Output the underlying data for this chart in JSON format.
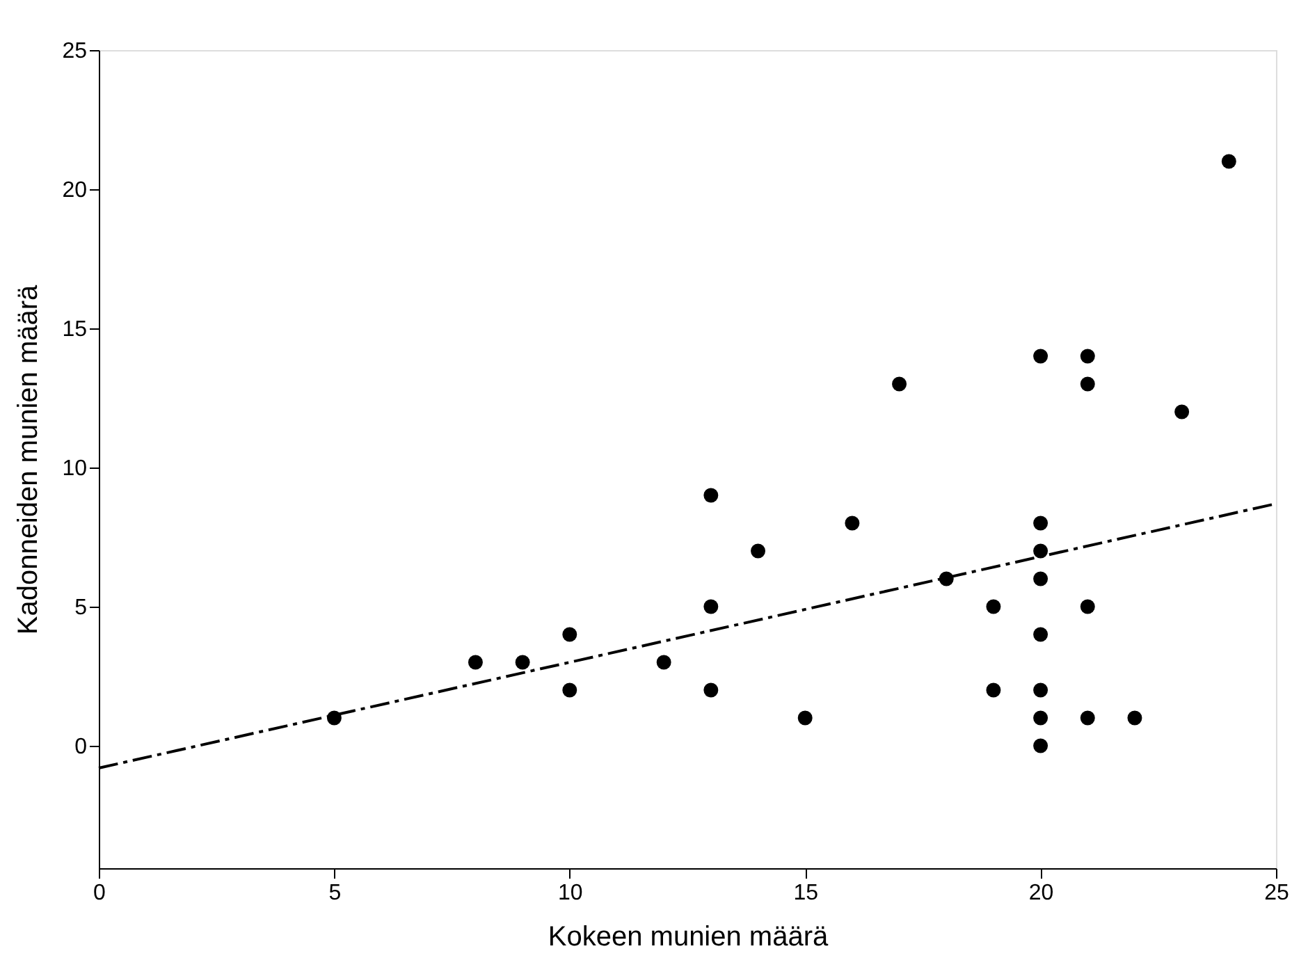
{
  "chart_data": {
    "type": "scatter",
    "xlabel": "Kokeen munien määrä",
    "ylabel": "Kadonneiden munien määrä",
    "xlim": [
      0,
      25
    ],
    "ylim": [
      -4.4,
      25
    ],
    "xticks": [
      0,
      5,
      10,
      15,
      20,
      25
    ],
    "yticks": [
      0,
      5,
      10,
      15,
      20,
      25
    ],
    "grid": false,
    "marker": "circle",
    "series": [
      {
        "color": "#000000",
        "x": [
          5,
          8,
          9,
          10,
          10,
          12,
          13,
          13,
          13,
          14,
          15,
          16,
          17,
          18,
          19,
          19,
          20,
          20,
          20,
          20,
          20,
          20,
          20,
          20,
          21,
          21,
          21,
          21,
          22,
          23,
          24
        ],
        "values": [
          1,
          3,
          3,
          4,
          2,
          3,
          9,
          5,
          2,
          7,
          1,
          8,
          13,
          6,
          5,
          2,
          14,
          8,
          7,
          6,
          4,
          2,
          1,
          0,
          14,
          13,
          5,
          1,
          1,
          12,
          21
        ]
      },
      {
        "type": "line",
        "color": "#000000",
        "line_style": "dashed",
        "marker": "none",
        "x": [
          0,
          25
        ],
        "values": [
          -0.8,
          8.7
        ]
      }
    ]
  }
}
